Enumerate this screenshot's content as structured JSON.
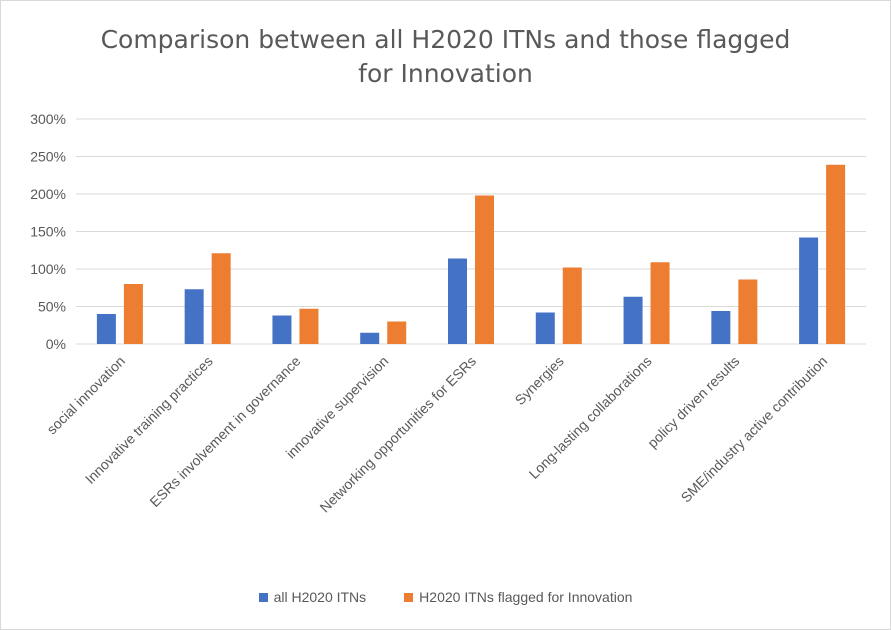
{
  "chart_data": {
    "type": "bar",
    "title_line1": "Comparison between all H2020 ITNs and those flagged",
    "title_line2": "for Innovation",
    "categories": [
      "social innovation",
      "Innovative training practices",
      "ESRs involvement in governance",
      "innovative supervision",
      "Networking opportunities for ESRs",
      "Synergies",
      "Long-lasting collaborations",
      "policy driven results",
      "SME/industry active contribution"
    ],
    "series": [
      {
        "name": "all H2020 ITNs",
        "color": "#4472C4",
        "values": [
          40,
          73,
          38,
          15,
          114,
          42,
          63,
          44,
          142
        ]
      },
      {
        "name": "H2020 ITNs flagged for Innovation",
        "color": "#ED7D31",
        "values": [
          80,
          121,
          47,
          30,
          198,
          102,
          109,
          86,
          239
        ]
      }
    ],
    "ylim": [
      0,
      300
    ],
    "yticks": [
      "0%",
      "50%",
      "100%",
      "150%",
      "200%",
      "250%",
      "300%"
    ],
    "ytick_values": [
      0,
      50,
      100,
      150,
      200,
      250,
      300
    ],
    "grid": true,
    "legend_position": "bottom"
  }
}
